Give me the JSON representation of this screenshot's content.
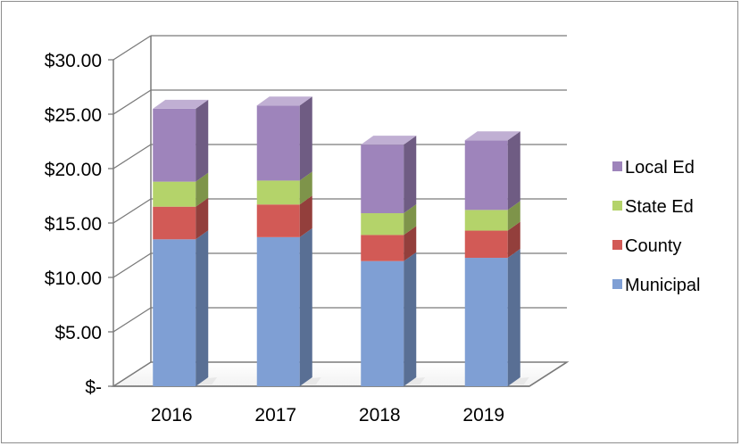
{
  "chart_data": {
    "type": "bar",
    "stacked": true,
    "three_d": true,
    "categories": [
      "2016",
      "2017",
      "2018",
      "2019"
    ],
    "series": [
      {
        "name": "Municipal",
        "values": [
          13.5,
          13.7,
          11.5,
          11.8
        ],
        "color": "#7f9fd4"
      },
      {
        "name": "County",
        "values": [
          3.0,
          3.0,
          2.4,
          2.5
        ],
        "color": "#d25a56"
      },
      {
        "name": "State Ed",
        "values": [
          2.3,
          2.2,
          2.0,
          1.9
        ],
        "color": "#b4d36a"
      },
      {
        "name": "Local Ed",
        "values": [
          6.7,
          6.9,
          6.3,
          6.4
        ],
        "color": "#9e84bb"
      }
    ],
    "y_tick_labels": [
      "$-",
      "$5.00",
      "$10.00",
      "$15.00",
      "$20.00",
      "$25.00",
      "$30.00"
    ],
    "ylim": [
      0,
      30
    ],
    "grid": true,
    "legend_position": "right"
  }
}
